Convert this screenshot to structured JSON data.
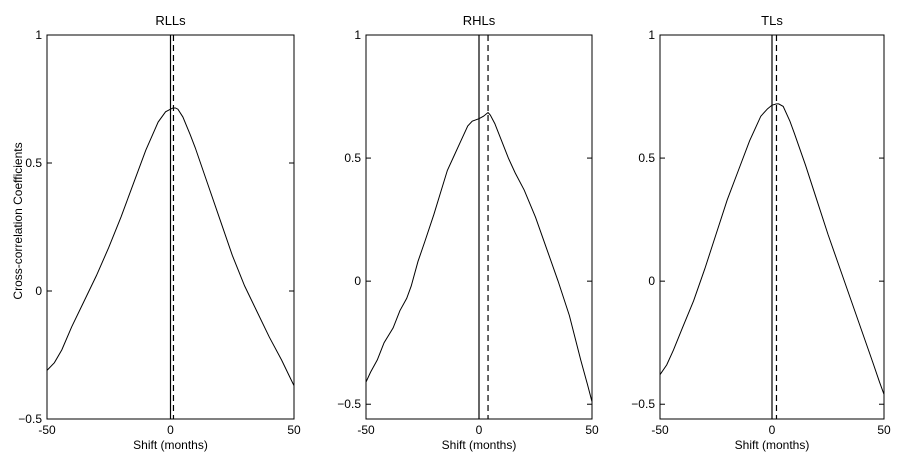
{
  "ylabel": "Cross-correlation Coefficients",
  "colors": {
    "line": "#000000",
    "background": "#ffffff"
  },
  "chart_data": [
    {
      "type": "line",
      "title": "RLLs",
      "xlabel": "Shift (months)",
      "xlim": [
        -50,
        50
      ],
      "ylim": [
        -0.5,
        1
      ],
      "xticks": [
        -50,
        0,
        50
      ],
      "yticks": [
        -0.5,
        0,
        0.5,
        1
      ],
      "ytick_labels": [
        "−0.5",
        "0",
        "0.5",
        "1"
      ],
      "vertical_lines": [
        {
          "x": 0,
          "style": "solid"
        },
        {
          "x": 1.2,
          "style": "dashed"
        }
      ],
      "series": [
        {
          "x": [
            -50,
            -47,
            -44,
            -40,
            -35,
            -30,
            -25,
            -20,
            -15,
            -10,
            -5,
            -2,
            0,
            1,
            2,
            3,
            5,
            8,
            10,
            15,
            20,
            25,
            30,
            35,
            40,
            45,
            48,
            50
          ],
          "values": [
            -0.31,
            -0.28,
            -0.23,
            -0.14,
            -0.04,
            0.06,
            0.17,
            0.29,
            0.42,
            0.55,
            0.66,
            0.7,
            0.71,
            0.715,
            0.715,
            0.71,
            0.68,
            0.61,
            0.56,
            0.42,
            0.28,
            0.14,
            0.02,
            -0.08,
            -0.18,
            -0.27,
            -0.33,
            -0.37
          ]
        }
      ]
    },
    {
      "type": "line",
      "title": "RHLs",
      "xlabel": "Shift (months)",
      "xlim": [
        -50,
        50
      ],
      "ylim": [
        -0.56,
        1
      ],
      "xticks": [
        -50,
        0,
        50
      ],
      "yticks": [
        -0.5,
        0,
        0.5,
        1
      ],
      "ytick_labels": [
        "−0.5",
        "0",
        "0.5",
        "1"
      ],
      "vertical_lines": [
        {
          "x": 0,
          "style": "solid"
        },
        {
          "x": 4,
          "style": "dashed"
        }
      ],
      "series": [
        {
          "x": [
            -50,
            -48,
            -45,
            -42,
            -38,
            -35,
            -32,
            -30,
            -27,
            -24,
            -20,
            -17,
            -14,
            -11,
            -8,
            -5,
            -3,
            0,
            2,
            4,
            5,
            7,
            10,
            13,
            16,
            20,
            25,
            30,
            35,
            40,
            45,
            48,
            50
          ],
          "values": [
            -0.41,
            -0.37,
            -0.32,
            -0.25,
            -0.19,
            -0.12,
            -0.07,
            -0.02,
            0.08,
            0.16,
            0.27,
            0.36,
            0.45,
            0.51,
            0.57,
            0.63,
            0.65,
            0.66,
            0.67,
            0.685,
            0.675,
            0.64,
            0.57,
            0.5,
            0.44,
            0.37,
            0.26,
            0.13,
            0.0,
            -0.14,
            -0.32,
            -0.42,
            -0.49
          ]
        }
      ]
    },
    {
      "type": "line",
      "title": "TLs",
      "xlabel": "Shift (months)",
      "xlim": [
        -50,
        50
      ],
      "ylim": [
        -0.56,
        1
      ],
      "xticks": [
        -50,
        0,
        50
      ],
      "yticks": [
        -0.5,
        0,
        0.5,
        1
      ],
      "ytick_labels": [
        "−0.5",
        "0",
        "0.5",
        "1"
      ],
      "vertical_lines": [
        {
          "x": 0,
          "style": "solid"
        },
        {
          "x": 2,
          "style": "dashed"
        }
      ],
      "series": [
        {
          "x": [
            -50,
            -47,
            -44,
            -40,
            -35,
            -30,
            -25,
            -20,
            -15,
            -10,
            -5,
            -2,
            0,
            2,
            3,
            5,
            8,
            10,
            15,
            20,
            25,
            30,
            35,
            40,
            45,
            48,
            50
          ],
          "values": [
            -0.38,
            -0.34,
            -0.28,
            -0.19,
            -0.08,
            0.05,
            0.19,
            0.33,
            0.45,
            0.57,
            0.67,
            0.7,
            0.715,
            0.72,
            0.72,
            0.71,
            0.65,
            0.6,
            0.47,
            0.33,
            0.19,
            0.06,
            -0.07,
            -0.2,
            -0.33,
            -0.41,
            -0.46
          ]
        }
      ]
    }
  ]
}
